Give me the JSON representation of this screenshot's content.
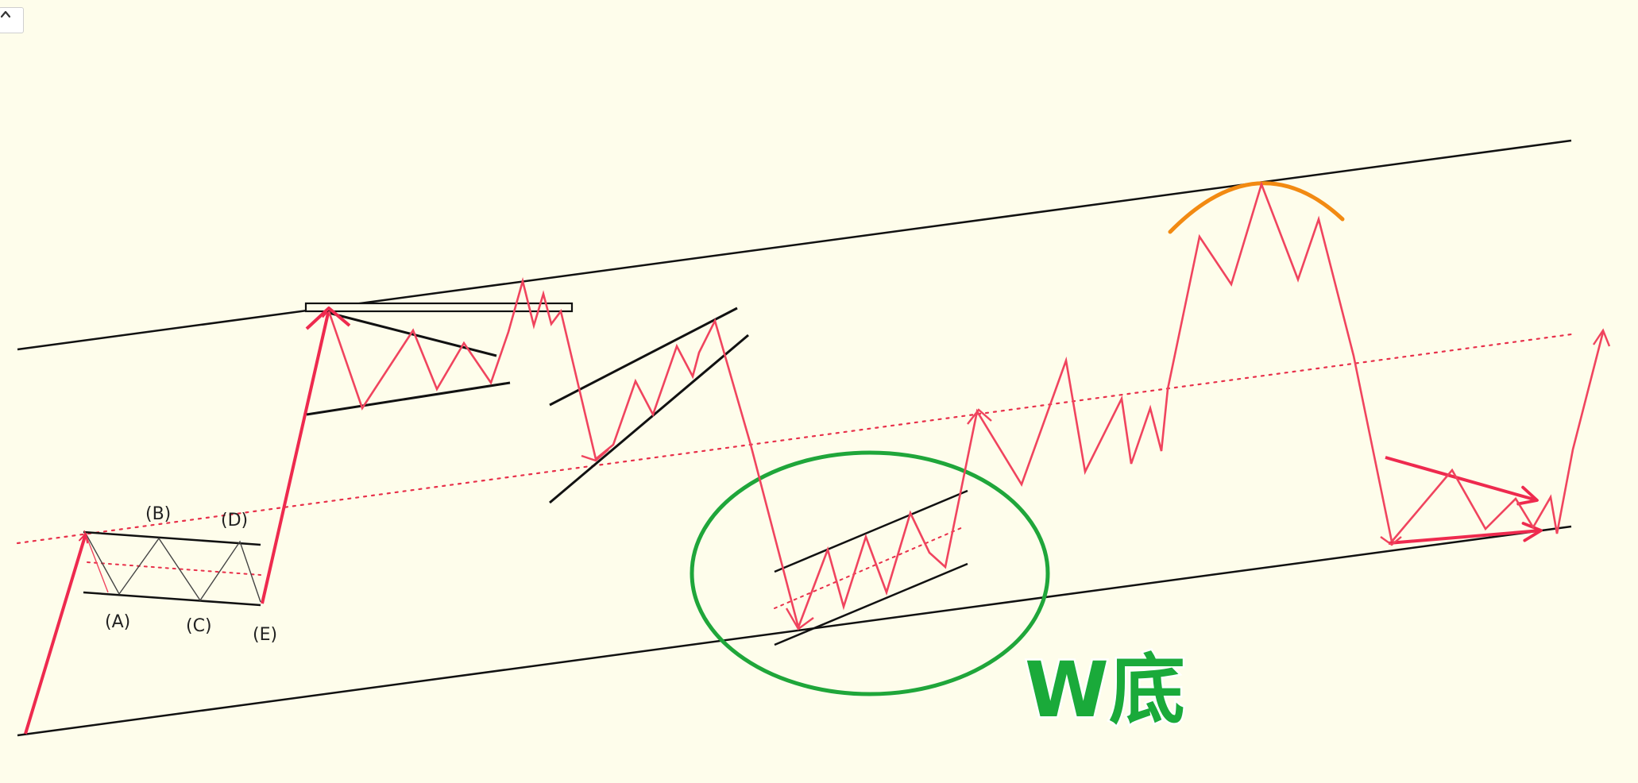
{
  "toolbar": {
    "collapse_icon": "chevron-up-icon"
  },
  "diagram": {
    "wave_labels": {
      "a": "(A)",
      "b": "(B)",
      "c": "(C)",
      "d": "(D)",
      "e": "(E)"
    },
    "pattern_label": "W底"
  },
  "colors": {
    "background": "#FEFDEB",
    "price_path": "#F0445E",
    "price_path_bold": "#EE2A4E",
    "channel_line": "#111111",
    "midline": "#E8304A",
    "ellipse": "#1FA63A",
    "arc": "#F28A12",
    "label_green": "#1AAA3A"
  }
}
